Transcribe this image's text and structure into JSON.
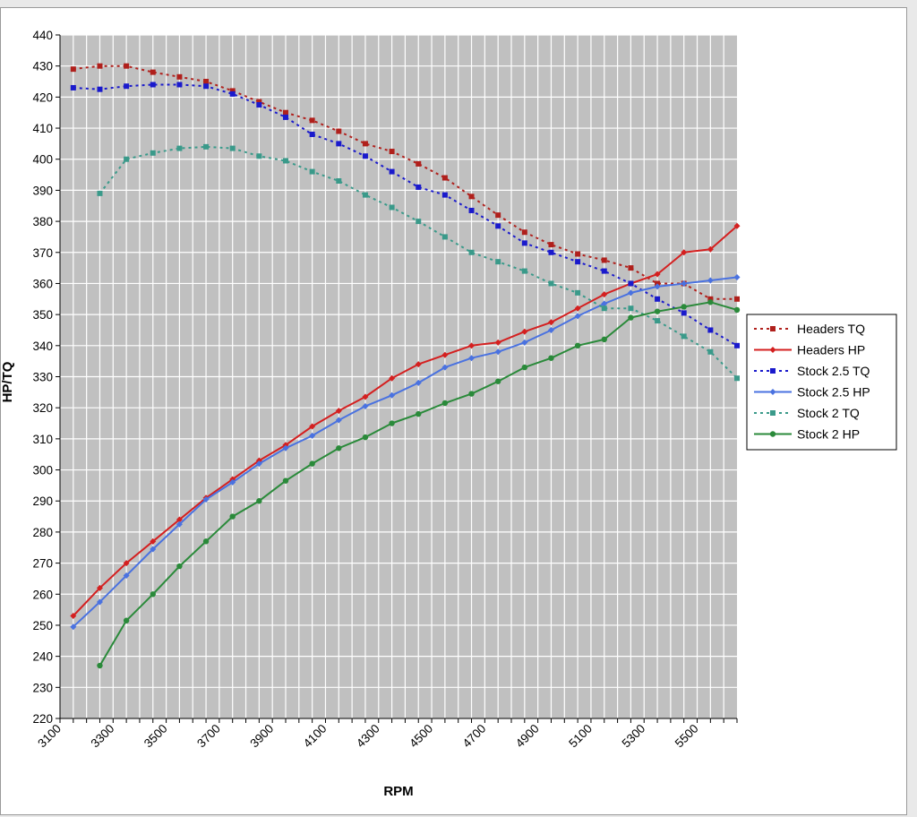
{
  "chart_data": {
    "type": "line",
    "xlabel": "RPM",
    "ylabel": "HP/TQ",
    "xlim": [
      3100,
      5650
    ],
    "ylim": [
      220,
      440
    ],
    "x_ticks": [
      3100,
      3300,
      3500,
      3700,
      3900,
      4100,
      4300,
      4500,
      4700,
      4900,
      5100,
      5300,
      5500
    ],
    "y_ticks": [
      220,
      230,
      240,
      250,
      260,
      270,
      280,
      290,
      300,
      310,
      320,
      330,
      340,
      350,
      360,
      370,
      380,
      390,
      400,
      410,
      420,
      430,
      440
    ],
    "grid": true,
    "plot_background": "#c0c0c0",
    "grid_color": "#ffffff",
    "legend_position": "right",
    "series": [
      {
        "name": "Headers TQ",
        "color": "#b0201c",
        "dashed": true,
        "marker": "square",
        "x": [
          3150,
          3250,
          3350,
          3450,
          3550,
          3650,
          3750,
          3850,
          3950,
          4050,
          4150,
          4250,
          4350,
          4450,
          4550,
          4650,
          4750,
          4850,
          4950,
          5050,
          5150,
          5250,
          5350,
          5450,
          5550,
          5650
        ],
        "values": [
          429,
          430,
          430,
          428,
          426.5,
          425,
          422,
          418.5,
          415,
          412.5,
          409,
          405,
          402.5,
          398.5,
          394,
          388,
          382,
          376.5,
          372.5,
          369.5,
          367.5,
          365,
          360,
          360,
          355,
          355
        ]
      },
      {
        "name": "Headers HP",
        "color": "#d42020",
        "dashed": false,
        "marker": "diamond",
        "x": [
          3150,
          3250,
          3350,
          3450,
          3550,
          3650,
          3750,
          3850,
          3950,
          4050,
          4150,
          4250,
          4350,
          4450,
          4550,
          4650,
          4750,
          4850,
          4950,
          5050,
          5150,
          5250,
          5350,
          5450,
          5550,
          5650
        ],
        "values": [
          253,
          262,
          270,
          277,
          284,
          291,
          297,
          303,
          308,
          314,
          319,
          323.5,
          329.5,
          334,
          337,
          340,
          341,
          344.5,
          347.5,
          352,
          356.5,
          360,
          363,
          370,
          371,
          378.5
        ]
      },
      {
        "name": "Stock 2.5 TQ",
        "color": "#1a1acc",
        "dashed": true,
        "marker": "square",
        "x": [
          3150,
          3250,
          3350,
          3450,
          3550,
          3650,
          3750,
          3850,
          3950,
          4050,
          4150,
          4250,
          4350,
          4450,
          4550,
          4650,
          4750,
          4850,
          4950,
          5050,
          5150,
          5250,
          5350,
          5450,
          5550,
          5650
        ],
        "values": [
          423,
          422.5,
          423.5,
          424,
          424,
          423.5,
          421,
          417.5,
          413.5,
          408,
          405,
          401,
          396,
          391,
          388.5,
          383.5,
          378.5,
          373,
          370,
          367,
          364,
          360,
          355,
          350.5,
          345,
          340
        ]
      },
      {
        "name": "Stock 2.5 HP",
        "color": "#4a72e0",
        "dashed": false,
        "marker": "diamond",
        "x": [
          3150,
          3250,
          3350,
          3450,
          3550,
          3650,
          3750,
          3850,
          3950,
          4050,
          4150,
          4250,
          4350,
          4450,
          4550,
          4650,
          4750,
          4850,
          4950,
          5050,
          5150,
          5250,
          5350,
          5450,
          5550,
          5650
        ],
        "values": [
          249.5,
          257.5,
          266,
          274.5,
          282.5,
          290.5,
          296,
          302,
          307,
          311,
          316,
          320.5,
          324,
          328,
          333,
          336,
          338,
          341,
          345,
          349.5,
          353.5,
          357,
          359,
          360,
          361,
          362
        ]
      },
      {
        "name": "Stock 2 TQ",
        "color": "#3a9a8a",
        "dashed": true,
        "marker": "square",
        "x": [
          3250,
          3350,
          3450,
          3550,
          3650,
          3750,
          3850,
          3950,
          4050,
          4150,
          4250,
          4350,
          4450,
          4550,
          4650,
          4750,
          4850,
          4950,
          5050,
          5150,
          5250,
          5350,
          5450,
          5550,
          5650
        ],
        "values": [
          389,
          400,
          402,
          403.5,
          404,
          403.5,
          401,
          399.5,
          396,
          393,
          388.5,
          384.5,
          380,
          375,
          370,
          367,
          364,
          360,
          357,
          352,
          352,
          348,
          343,
          338,
          329.5
        ]
      },
      {
        "name": "Stock 2 HP",
        "color": "#2a8a3a",
        "dashed": false,
        "marker": "circle",
        "x": [
          3250,
          3350,
          3450,
          3550,
          3650,
          3750,
          3850,
          3950,
          4050,
          4150,
          4250,
          4350,
          4450,
          4550,
          4650,
          4750,
          4850,
          4950,
          5050,
          5150,
          5250,
          5350,
          5450,
          5550,
          5650
        ],
        "values": [
          237,
          251.5,
          260,
          269,
          277,
          285,
          290,
          296.5,
          302,
          307,
          310.5,
          315,
          318,
          321.5,
          324.5,
          328.5,
          333,
          336,
          340,
          342,
          349,
          351,
          352.5,
          354,
          351.5
        ]
      }
    ]
  }
}
